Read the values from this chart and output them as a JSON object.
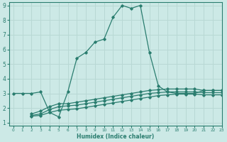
{
  "xlabel": "Humidex (Indice chaleur)",
  "xlim": [
    -0.5,
    23
  ],
  "ylim": [
    0.8,
    9.2
  ],
  "xticks": [
    0,
    1,
    2,
    3,
    4,
    5,
    6,
    7,
    8,
    9,
    10,
    11,
    12,
    13,
    14,
    15,
    16,
    17,
    18,
    19,
    20,
    21,
    22,
    23
  ],
  "yticks": [
    1,
    2,
    3,
    4,
    5,
    6,
    7,
    8,
    9
  ],
  "bg_color": "#cce9e6",
  "grid_color": "#b8d8d4",
  "line_color": "#2a7d6f",
  "lines": [
    {
      "x": [
        0,
        1,
        2,
        3,
        4,
        5,
        6,
        7,
        8,
        9,
        10,
        11,
        12,
        13,
        14,
        15,
        16,
        17,
        18,
        19,
        20,
        21,
        22,
        23
      ],
      "y": [
        3.0,
        3.0,
        3.0,
        3.1,
        1.7,
        1.4,
        3.1,
        5.4,
        5.8,
        6.5,
        6.7,
        8.2,
        9.0,
        8.8,
        9.0,
        5.8,
        3.5,
        3.1,
        3.0,
        3.0,
        3.0,
        3.2,
        3.2,
        3.2
      ]
    },
    {
      "x": [
        2,
        3,
        4,
        5,
        6,
        7,
        8,
        9,
        10,
        11,
        12,
        13,
        14,
        15,
        16,
        17,
        18,
        19,
        20,
        21,
        22,
        23
      ],
      "y": [
        1.6,
        1.8,
        2.1,
        2.3,
        2.3,
        2.4,
        2.5,
        2.6,
        2.7,
        2.8,
        2.9,
        3.0,
        3.1,
        3.2,
        3.25,
        3.3,
        3.3,
        3.3,
        3.3,
        3.2,
        3.2,
        3.2
      ]
    },
    {
      "x": [
        2,
        3,
        4,
        5,
        6,
        7,
        8,
        9,
        10,
        11,
        12,
        13,
        14,
        15,
        16,
        17,
        18,
        19,
        20,
        21,
        22,
        23
      ],
      "y": [
        1.5,
        1.6,
        1.9,
        2.1,
        2.15,
        2.2,
        2.3,
        2.4,
        2.5,
        2.6,
        2.7,
        2.8,
        2.9,
        3.0,
        3.05,
        3.1,
        3.1,
        3.1,
        3.1,
        3.05,
        3.05,
        3.05
      ]
    },
    {
      "x": [
        2,
        3,
        4,
        5,
        6,
        7,
        8,
        9,
        10,
        11,
        12,
        13,
        14,
        15,
        16,
        17,
        18,
        19,
        20,
        21,
        22,
        23
      ],
      "y": [
        1.45,
        1.5,
        1.7,
        1.85,
        1.9,
        1.95,
        2.05,
        2.15,
        2.25,
        2.35,
        2.45,
        2.55,
        2.65,
        2.75,
        2.85,
        2.9,
        2.95,
        2.95,
        2.95,
        2.9,
        2.9,
        2.9
      ]
    }
  ]
}
